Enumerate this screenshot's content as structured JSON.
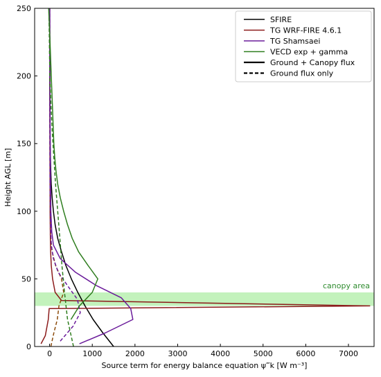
{
  "chart_data": {
    "type": "line",
    "title": "",
    "xlabel": "Source term for energy balance equation ψ‴k [W m⁻³]",
    "ylabel": "Height AGL [m]",
    "xlim": [
      -350,
      7600
    ],
    "ylim": [
      0,
      250
    ],
    "x_ticks": [
      0,
      1000,
      2000,
      3000,
      4000,
      5000,
      6000,
      7000
    ],
    "y_ticks": [
      0,
      50,
      100,
      150,
      200,
      250
    ],
    "grid": false,
    "legend": "top-right",
    "legend_entries": [
      {
        "label": "SFIRE",
        "color": "#000000",
        "style": "solid"
      },
      {
        "label": "TG WRF-FIRE 4.6.1",
        "color": "#8b1a1a",
        "style": "solid"
      },
      {
        "label": "TG Shamsaei",
        "color": "#6a1b9a",
        "style": "solid"
      },
      {
        "label": "VECD exp + gamma",
        "color": "#2e7d1e",
        "style": "solid"
      },
      {
        "label": "Ground + Canopy flux",
        "color": "#000000",
        "style": "solid-bold"
      },
      {
        "label": "Ground flux only",
        "color": "#000000",
        "style": "dashed"
      }
    ],
    "annotation": {
      "text": "canopy area",
      "color": "#2e8b2e"
    },
    "canopy_band": {
      "y_range": [
        30,
        40
      ],
      "color": "#b8f0b0"
    },
    "series": [
      {
        "name": "SFIRE",
        "style": "solid",
        "color": "#000000",
        "points": [
          [
            1500,
            0
          ],
          [
            1250,
            10
          ],
          [
            1020,
            20
          ],
          [
            830,
            30
          ],
          [
            660,
            40
          ],
          [
            510,
            50
          ],
          [
            380,
            60
          ],
          [
            280,
            70
          ],
          [
            190,
            80
          ],
          [
            130,
            90
          ],
          [
            90,
            100
          ],
          [
            60,
            110
          ],
          [
            40,
            120
          ],
          [
            28,
            130
          ],
          [
            20,
            140
          ],
          [
            14,
            150
          ],
          [
            8,
            175
          ],
          [
            4,
            200
          ],
          [
            2,
            225
          ],
          [
            1,
            250
          ]
        ]
      },
      {
        "name": "TG WRF-FIRE 4.6.1",
        "style": "solid",
        "color": "#8b1a1a",
        "points": [
          [
            -200,
            2
          ],
          [
            -100,
            8
          ],
          [
            -30,
            20
          ],
          [
            -10,
            28
          ],
          [
            7500,
            30
          ],
          [
            280,
            34
          ],
          [
            130,
            40
          ],
          [
            70,
            50
          ],
          [
            40,
            60
          ],
          [
            25,
            70
          ],
          [
            18,
            80
          ],
          [
            12,
            100
          ],
          [
            8,
            150
          ],
          [
            5,
            200
          ],
          [
            4,
            250
          ]
        ]
      },
      {
        "name": "TG WRF-FIRE 4.6.1 ground only",
        "style": "dashed",
        "color": "#8b4a0a",
        "points": [
          [
            30,
            0
          ],
          [
            100,
            10
          ],
          [
            180,
            20
          ],
          [
            220,
            30
          ],
          [
            330,
            40
          ],
          [
            280,
            50
          ],
          [
            140,
            60
          ],
          [
            60,
            70
          ],
          [
            30,
            80
          ],
          [
            15,
            100
          ],
          [
            8,
            150
          ],
          [
            4,
            200
          ],
          [
            3,
            250
          ]
        ]
      },
      {
        "name": "TG Shamsaei",
        "style": "solid",
        "color": "#6a1b9a",
        "points": [
          [
            700,
            2
          ],
          [
            1300,
            10
          ],
          [
            1950,
            20
          ],
          [
            1900,
            28
          ],
          [
            1680,
            36
          ],
          [
            1100,
            45
          ],
          [
            600,
            55
          ],
          [
            250,
            65
          ],
          [
            90,
            75
          ],
          [
            50,
            85
          ],
          [
            30,
            100
          ],
          [
            15,
            150
          ],
          [
            8,
            200
          ],
          [
            5,
            250
          ]
        ]
      },
      {
        "name": "TG Shamsaei ground only",
        "style": "dashed",
        "color": "#6a1b9a",
        "points": [
          [
            250,
            4
          ],
          [
            550,
            15
          ],
          [
            720,
            25
          ],
          [
            650,
            35
          ],
          [
            420,
            45
          ],
          [
            200,
            55
          ],
          [
            90,
            65
          ],
          [
            40,
            75
          ],
          [
            20,
            90
          ],
          [
            10,
            120
          ],
          [
            5,
            180
          ],
          [
            3,
            250
          ]
        ]
      },
      {
        "name": "VECD exp + gamma",
        "style": "solid",
        "color": "#2e7d1e",
        "points": [
          [
            500,
            20
          ],
          [
            700,
            30
          ],
          [
            1000,
            40
          ],
          [
            1130,
            50
          ],
          [
            900,
            60
          ],
          [
            680,
            70
          ],
          [
            530,
            80
          ],
          [
            420,
            90
          ],
          [
            330,
            100
          ],
          [
            250,
            110
          ],
          [
            190,
            120
          ],
          [
            150,
            130
          ],
          [
            120,
            140
          ],
          [
            100,
            150
          ],
          [
            70,
            175
          ],
          [
            40,
            200
          ],
          [
            10,
            225
          ],
          [
            -20,
            250
          ]
        ]
      },
      {
        "name": "VECD exp + gamma ground only",
        "style": "dashed",
        "color": "#2e7d1e",
        "points": [
          [
            560,
            0
          ],
          [
            420,
            20
          ],
          [
            350,
            40
          ],
          [
            290,
            60
          ],
          [
            240,
            80
          ],
          [
            190,
            100
          ],
          [
            140,
            120
          ],
          [
            100,
            140
          ],
          [
            60,
            160
          ],
          [
            30,
            180
          ],
          [
            5,
            200
          ],
          [
            -5,
            225
          ],
          [
            -15,
            250
          ]
        ]
      }
    ]
  }
}
